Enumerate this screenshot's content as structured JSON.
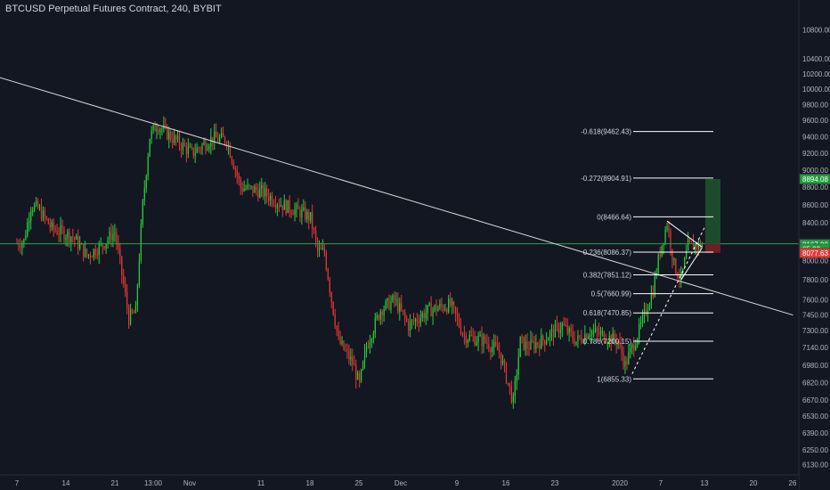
{
  "header": {
    "title": "BTCUSD Perpetual Futures Contract, 240, BYBIT"
  },
  "colors": {
    "background": "#131722",
    "up": "#26d13a",
    "down": "#e53935",
    "trendline": "#d8d8d8",
    "hline": "#26a645",
    "target_zone": "#1b4d2a",
    "stop_zone": "#6b1f27"
  },
  "chart_data": {
    "type": "candlestick",
    "title": "BTCUSD Perpetual Futures Contract, 240, BYBIT",
    "y_axis": {
      "scale": "log",
      "range": [
        6100,
        11000
      ],
      "ticks": [
        "10800.00",
        "10400.00",
        "10200.00",
        "10000.00",
        "9800.00",
        "9600.00",
        "9400.00",
        "9200.00",
        "9000.00",
        "8800.00",
        "8600.00",
        "8400.00",
        "8200.00",
        "8000.00",
        "7800.00",
        "7600.00",
        "7450.00",
        "7300.00",
        "7140.00",
        "6980.00",
        "6820.00",
        "6670.00",
        "6530.00",
        "6390.00",
        "6250.00",
        "6130.00"
      ]
    },
    "x_axis": {
      "ticks": [
        "7",
        "14",
        "21",
        "13:00",
        "Nov",
        "11",
        "18",
        "25",
        "Dec",
        "9",
        "16",
        "23",
        "2020",
        "7",
        "13",
        "20",
        "26"
      ]
    },
    "close_path": [
      {
        "date": "Oct 7",
        "close": 8180
      },
      {
        "date": "Oct 8",
        "close": 8200
      },
      {
        "date": "Oct 9",
        "close": 8590
      },
      {
        "date": "Oct 10",
        "close": 8560
      },
      {
        "date": "Oct 12",
        "close": 8340
      },
      {
        "date": "Oct 15",
        "close": 8250
      },
      {
        "date": "Oct 17",
        "close": 8050
      },
      {
        "date": "Oct 19",
        "close": 8150
      },
      {
        "date": "Oct 21",
        "close": 8300
      },
      {
        "date": "Oct 23",
        "close": 7420
      },
      {
        "date": "Oct 24",
        "close": 7480
      },
      {
        "date": "Oct 25",
        "close": 8600
      },
      {
        "date": "Oct 26",
        "close": 9400
      },
      {
        "date": "Oct 27",
        "close": 9550
      },
      {
        "date": "Oct 29",
        "close": 9400
      },
      {
        "date": "Nov 1",
        "close": 9200
      },
      {
        "date": "Nov 4",
        "close": 9380
      },
      {
        "date": "Nov 6",
        "close": 9360
      },
      {
        "date": "Nov 8",
        "close": 8800
      },
      {
        "date": "Nov 11",
        "close": 8750
      },
      {
        "date": "Nov 14",
        "close": 8600
      },
      {
        "date": "Nov 17",
        "close": 8500
      },
      {
        "date": "Nov 18",
        "close": 8450
      },
      {
        "date": "Nov 19",
        "close": 8100
      },
      {
        "date": "Nov 20",
        "close": 8080
      },
      {
        "date": "Nov 21",
        "close": 7600
      },
      {
        "date": "Nov 22",
        "close": 7200
      },
      {
        "date": "Nov 24",
        "close": 7000
      },
      {
        "date": "Nov 25",
        "close": 6800
      },
      {
        "date": "Nov 26",
        "close": 7150
      },
      {
        "date": "Nov 28",
        "close": 7500
      },
      {
        "date": "Nov 30",
        "close": 7600
      },
      {
        "date": "Dec 2",
        "close": 7350
      },
      {
        "date": "Dec 5",
        "close": 7500
      },
      {
        "date": "Dec 8",
        "close": 7550
      },
      {
        "date": "Dec 10",
        "close": 7250
      },
      {
        "date": "Dec 13",
        "close": 7200
      },
      {
        "date": "Dec 15",
        "close": 7100
      },
      {
        "date": "Dec 17",
        "close": 6650
      },
      {
        "date": "Dec 18",
        "close": 7200
      },
      {
        "date": "Dec 19",
        "close": 7150
      },
      {
        "date": "Dec 21",
        "close": 7200
      },
      {
        "date": "Dec 24",
        "close": 7350
      },
      {
        "date": "Dec 26",
        "close": 7200
      },
      {
        "date": "Dec 28",
        "close": 7300
      },
      {
        "date": "Dec 30",
        "close": 7250
      },
      {
        "date": "Jan 1",
        "close": 7200
      },
      {
        "date": "Jan 2",
        "close": 6980
      },
      {
        "date": "Jan 4",
        "close": 7300
      },
      {
        "date": "Jan 6",
        "close": 7700
      },
      {
        "date": "Jan 7",
        "close": 8100
      },
      {
        "date": "Jan 8",
        "close": 8400
      },
      {
        "date": "Jan 9",
        "close": 7950
      },
      {
        "date": "Jan 10",
        "close": 7800
      },
      {
        "date": "Jan 11",
        "close": 8150
      },
      {
        "date": "Jan 12",
        "close": 8150
      },
      {
        "date": "Jan 13",
        "close": 8167
      }
    ],
    "fib_levels": [
      {
        "label": "-0.618(9462.43)",
        "price": 9462.43
      },
      {
        "label": "-0.272(8904.91)",
        "price": 8904.91
      },
      {
        "label": "0(8466.64)",
        "price": 8466.64
      },
      {
        "label": "0.236(8086.37)",
        "price": 8086.37
      },
      {
        "label": "0.382(7851.12)",
        "price": 7851.12
      },
      {
        "label": "0.5(7660.99)",
        "price": 7660.99
      },
      {
        "label": "0.618(7470.85)",
        "price": 7470.85
      },
      {
        "label": "0.786(7200.15)",
        "price": 7200.15
      },
      {
        "label": "1(6855.33)",
        "price": 6855.33
      }
    ],
    "price_tags": [
      {
        "label": "8894.08",
        "price": 8894.08,
        "color": "#1f9d3a"
      },
      {
        "label": "8174.86",
        "price": 8174.86,
        "color": "#131722"
      },
      {
        "label": "8167.00",
        "price": 8167.0,
        "color": "#1f9d3a"
      },
      {
        "label": "05:33",
        "price": 8120,
        "color": "#1f9d3a"
      },
      {
        "label": "8077.63",
        "price": 8077.63,
        "color": "#e53935"
      }
    ],
    "horizontal_line": 8174.86,
    "descending_trendline": [
      {
        "date": "Oct 1",
        "price": 10250
      },
      {
        "date": "Jan 26",
        "price": 7450
      }
    ],
    "triangle": {
      "top": [
        {
          "date": "Jan 8",
          "price": 8420
        },
        {
          "date": "Jan 13",
          "price": 8140
        }
      ],
      "bottom": [
        {
          "date": "Jan 10",
          "price": 7800
        },
        {
          "date": "Jan 13",
          "price": 8130
        }
      ]
    },
    "dashed_projection": [
      {
        "date": "Jan 3",
        "price": 6900
      },
      {
        "date": "Jan 14",
        "price": 8450
      }
    ],
    "position": {
      "entry": 8174.86,
      "target": 8894.08,
      "stop": 8077.63
    },
    "grid": false
  }
}
